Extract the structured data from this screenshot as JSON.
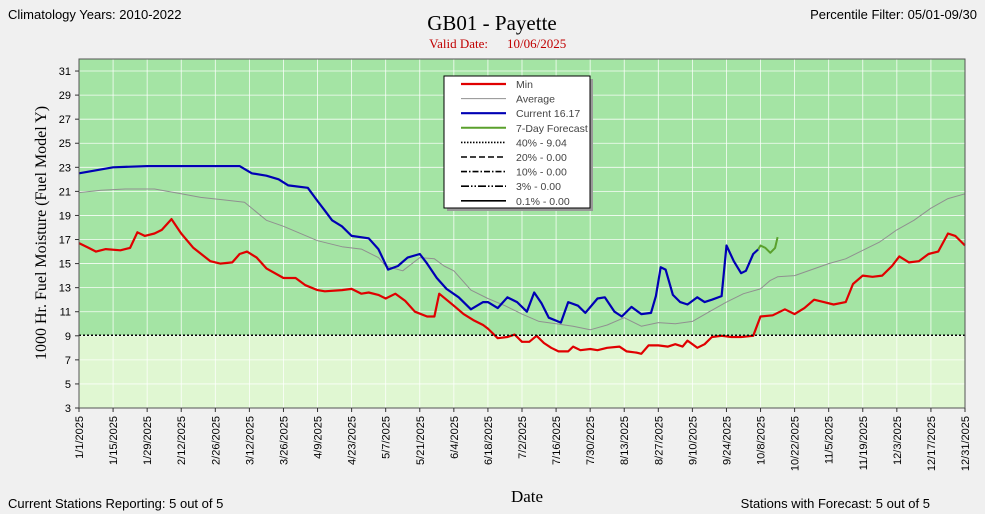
{
  "header": {
    "climatology": "Climatology Years: 2010-2022",
    "percentile_filter": "Percentile Filter:  05/01-09/30",
    "valid_date_label": "Valid Date:",
    "valid_date_value": "10/06/2025"
  },
  "footer": {
    "stations_reporting": "Current Stations Reporting: 5 out of 5",
    "stations_forecast": "Stations with Forecast: 5 out of 5"
  },
  "chart_data": {
    "type": "line",
    "title": "GB01 - Payette",
    "xlabel": "Date",
    "ylabel": "1000 Hr. Fuel Moisture  (Fuel Model Y)",
    "ylim": [
      3,
      32
    ],
    "yticks": [
      3,
      5,
      7,
      9,
      11,
      13,
      15,
      17,
      19,
      21,
      23,
      25,
      27,
      29,
      31
    ],
    "xlim": [
      "2025-01-01",
      "2025-12-31"
    ],
    "xticks": [
      "1/1/2025",
      "1/15/2025",
      "1/29/2025",
      "2/12/2025",
      "2/26/2025",
      "3/12/2025",
      "3/26/2025",
      "4/9/2025",
      "4/23/2025",
      "5/7/2025",
      "5/21/2025",
      "6/4/2025",
      "6/18/2025",
      "7/2/2025",
      "7/16/2025",
      "7/30/2025",
      "8/13/2025",
      "8/27/2025",
      "9/10/2025",
      "9/24/2025",
      "10/8/2025",
      "10/22/2025",
      "11/5/2025",
      "11/19/2025",
      "12/3/2025",
      "12/17/2025",
      "12/31/2025"
    ],
    "threshold": 9.04,
    "colors": {
      "band_upper": "#a4e4a4",
      "band_lower": "#e0f7d2",
      "min": "#e00000",
      "average": "#909090",
      "current": "#0000b4",
      "forecast": "#5aa02c"
    },
    "legend": {
      "placement": "top-center",
      "entries": [
        "Min",
        "Average",
        "Current 16.17",
        "7-Day Forecast",
        "40% -  9.04",
        "20% -  0.00",
        "10% -  0.00",
        "3% -  0.00",
        "0.1% -  0.00"
      ]
    },
    "series": [
      {
        "name": "Min",
        "points": [
          [
            "2025-01-01",
            16.7
          ],
          [
            "2025-01-05",
            16.3
          ],
          [
            "2025-01-08",
            16.0
          ],
          [
            "2025-01-12",
            16.2
          ],
          [
            "2025-01-18",
            16.1
          ],
          [
            "2025-01-22",
            16.3
          ],
          [
            "2025-01-25",
            17.6
          ],
          [
            "2025-01-28",
            17.3
          ],
          [
            "2025-02-01",
            17.5
          ],
          [
            "2025-02-04",
            17.8
          ],
          [
            "2025-02-08",
            18.7
          ],
          [
            "2025-02-12",
            17.5
          ],
          [
            "2025-02-17",
            16.3
          ],
          [
            "2025-02-24",
            15.2
          ],
          [
            "2025-02-28",
            15.0
          ],
          [
            "2025-03-05",
            15.1
          ],
          [
            "2025-03-08",
            15.8
          ],
          [
            "2025-03-11",
            16.0
          ],
          [
            "2025-03-15",
            15.5
          ],
          [
            "2025-03-19",
            14.6
          ],
          [
            "2025-03-26",
            13.8
          ],
          [
            "2025-03-31",
            13.8
          ],
          [
            "2025-04-04",
            13.2
          ],
          [
            "2025-04-09",
            12.8
          ],
          [
            "2025-04-12",
            12.7
          ],
          [
            "2025-04-19",
            12.8
          ],
          [
            "2025-04-23",
            12.9
          ],
          [
            "2025-04-27",
            12.5
          ],
          [
            "2025-04-30",
            12.6
          ],
          [
            "2025-05-04",
            12.4
          ],
          [
            "2025-05-07",
            12.1
          ],
          [
            "2025-05-11",
            12.5
          ],
          [
            "2025-05-15",
            11.9
          ],
          [
            "2025-05-19",
            11.0
          ],
          [
            "2025-05-24",
            10.6
          ],
          [
            "2025-05-27",
            10.6
          ],
          [
            "2025-05-29",
            12.5
          ],
          [
            "2025-06-01",
            12.0
          ],
          [
            "2025-06-04",
            11.5
          ],
          [
            "2025-06-08",
            10.8
          ],
          [
            "2025-06-12",
            10.3
          ],
          [
            "2025-06-16",
            9.9
          ],
          [
            "2025-06-18",
            9.6
          ],
          [
            "2025-06-22",
            8.8
          ],
          [
            "2025-06-26",
            8.9
          ],
          [
            "2025-06-29",
            9.1
          ],
          [
            "2025-07-02",
            8.5
          ],
          [
            "2025-07-05",
            8.5
          ],
          [
            "2025-07-08",
            9.0
          ],
          [
            "2025-07-11",
            8.4
          ],
          [
            "2025-07-14",
            8.0
          ],
          [
            "2025-07-17",
            7.7
          ],
          [
            "2025-07-21",
            7.7
          ],
          [
            "2025-07-23",
            8.1
          ],
          [
            "2025-07-26",
            7.8
          ],
          [
            "2025-07-30",
            7.9
          ],
          [
            "2025-08-02",
            7.8
          ],
          [
            "2025-08-06",
            8.0
          ],
          [
            "2025-08-11",
            8.1
          ],
          [
            "2025-08-14",
            7.7
          ],
          [
            "2025-08-18",
            7.6
          ],
          [
            "2025-08-20",
            7.5
          ],
          [
            "2025-08-23",
            8.2
          ],
          [
            "2025-08-27",
            8.2
          ],
          [
            "2025-08-31",
            8.1
          ],
          [
            "2025-09-03",
            8.3
          ],
          [
            "2025-09-06",
            8.1
          ],
          [
            "2025-09-08",
            8.6
          ],
          [
            "2025-09-12",
            8.0
          ],
          [
            "2025-09-15",
            8.3
          ],
          [
            "2025-09-18",
            8.9
          ],
          [
            "2025-09-22",
            9.0
          ],
          [
            "2025-09-26",
            8.9
          ],
          [
            "2025-09-30",
            8.9
          ],
          [
            "2025-10-05",
            9.0
          ],
          [
            "2025-10-08",
            10.6
          ],
          [
            "2025-10-13",
            10.7
          ],
          [
            "2025-10-18",
            11.2
          ],
          [
            "2025-10-22",
            10.8
          ],
          [
            "2025-10-26",
            11.3
          ],
          [
            "2025-10-30",
            12.0
          ],
          [
            "2025-11-03",
            11.8
          ],
          [
            "2025-11-07",
            11.6
          ],
          [
            "2025-11-12",
            11.8
          ],
          [
            "2025-11-15",
            13.3
          ],
          [
            "2025-11-19",
            14.0
          ],
          [
            "2025-11-23",
            13.9
          ],
          [
            "2025-11-27",
            14.0
          ],
          [
            "2025-12-01",
            14.8
          ],
          [
            "2025-12-04",
            15.6
          ],
          [
            "2025-12-08",
            15.1
          ],
          [
            "2025-12-12",
            15.2
          ],
          [
            "2025-12-16",
            15.8
          ],
          [
            "2025-12-20",
            16.0
          ],
          [
            "2025-12-24",
            17.5
          ],
          [
            "2025-12-27",
            17.3
          ],
          [
            "2025-12-31",
            16.5
          ]
        ]
      },
      {
        "name": "Average",
        "points": [
          [
            "2025-01-01",
            20.9
          ],
          [
            "2025-01-10",
            21.1
          ],
          [
            "2025-01-20",
            21.2
          ],
          [
            "2025-02-01",
            21.2
          ],
          [
            "2025-02-12",
            20.8
          ],
          [
            "2025-02-20",
            20.5
          ],
          [
            "2025-03-01",
            20.3
          ],
          [
            "2025-03-10",
            20.1
          ],
          [
            "2025-03-19",
            18.6
          ],
          [
            "2025-03-26",
            18.1
          ],
          [
            "2025-04-09",
            16.9
          ],
          [
            "2025-04-19",
            16.4
          ],
          [
            "2025-04-27",
            16.2
          ],
          [
            "2025-05-04",
            15.5
          ],
          [
            "2025-05-07",
            14.8
          ],
          [
            "2025-05-14",
            14.4
          ],
          [
            "2025-05-21",
            15.5
          ],
          [
            "2025-05-27",
            15.4
          ],
          [
            "2025-05-31",
            14.8
          ],
          [
            "2025-06-04",
            14.4
          ],
          [
            "2025-06-11",
            12.8
          ],
          [
            "2025-06-18",
            12.1
          ],
          [
            "2025-06-25",
            11.5
          ],
          [
            "2025-07-02",
            10.8
          ],
          [
            "2025-07-09",
            10.2
          ],
          [
            "2025-07-16",
            10.0
          ],
          [
            "2025-07-23",
            9.8
          ],
          [
            "2025-07-30",
            9.5
          ],
          [
            "2025-08-06",
            9.9
          ],
          [
            "2025-08-13",
            10.5
          ],
          [
            "2025-08-20",
            9.8
          ],
          [
            "2025-08-27",
            10.1
          ],
          [
            "2025-09-03",
            10.0
          ],
          [
            "2025-09-10",
            10.2
          ],
          [
            "2025-09-17",
            11.0
          ],
          [
            "2025-09-24",
            11.8
          ],
          [
            "2025-10-01",
            12.5
          ],
          [
            "2025-10-08",
            12.9
          ],
          [
            "2025-10-12",
            13.6
          ],
          [
            "2025-10-15",
            13.9
          ],
          [
            "2025-10-22",
            14.0
          ],
          [
            "2025-10-29",
            14.5
          ],
          [
            "2025-11-05",
            15.0
          ],
          [
            "2025-11-12",
            15.4
          ],
          [
            "2025-11-19",
            16.1
          ],
          [
            "2025-11-26",
            16.8
          ],
          [
            "2025-12-03",
            17.8
          ],
          [
            "2025-12-10",
            18.6
          ],
          [
            "2025-12-17",
            19.6
          ],
          [
            "2025-12-24",
            20.4
          ],
          [
            "2025-12-31",
            20.8
          ]
        ]
      },
      {
        "name": "Current 16.17",
        "points": [
          [
            "2025-01-01",
            22.5
          ],
          [
            "2025-01-15",
            23.0
          ],
          [
            "2025-01-29",
            23.1
          ],
          [
            "2025-02-12",
            23.1
          ],
          [
            "2025-03-08",
            23.1
          ],
          [
            "2025-03-13",
            22.5
          ],
          [
            "2025-03-19",
            22.3
          ],
          [
            "2025-03-24",
            22.0
          ],
          [
            "2025-03-28",
            21.5
          ],
          [
            "2025-04-05",
            21.3
          ],
          [
            "2025-04-09",
            20.2
          ],
          [
            "2025-04-12",
            19.4
          ],
          [
            "2025-04-15",
            18.6
          ],
          [
            "2025-04-19",
            18.1
          ],
          [
            "2025-04-23",
            17.3
          ],
          [
            "2025-04-30",
            17.1
          ],
          [
            "2025-05-04",
            16.2
          ],
          [
            "2025-05-08",
            14.5
          ],
          [
            "2025-05-12",
            14.8
          ],
          [
            "2025-05-16",
            15.5
          ],
          [
            "2025-05-21",
            15.8
          ],
          [
            "2025-05-24",
            15.0
          ],
          [
            "2025-05-28",
            13.8
          ],
          [
            "2025-06-01",
            12.9
          ],
          [
            "2025-06-06",
            12.2
          ],
          [
            "2025-06-11",
            11.2
          ],
          [
            "2025-06-16",
            11.8
          ],
          [
            "2025-06-18",
            11.8
          ],
          [
            "2025-06-22",
            11.3
          ],
          [
            "2025-06-26",
            12.2
          ],
          [
            "2025-06-30",
            11.8
          ],
          [
            "2025-07-04",
            11.0
          ],
          [
            "2025-07-07",
            12.6
          ],
          [
            "2025-07-10",
            11.7
          ],
          [
            "2025-07-13",
            10.5
          ],
          [
            "2025-07-18",
            10.1
          ],
          [
            "2025-07-21",
            11.8
          ],
          [
            "2025-07-25",
            11.5
          ],
          [
            "2025-07-28",
            10.9
          ],
          [
            "2025-08-02",
            12.1
          ],
          [
            "2025-08-05",
            12.2
          ],
          [
            "2025-08-09",
            11.0
          ],
          [
            "2025-08-12",
            10.6
          ],
          [
            "2025-08-16",
            11.4
          ],
          [
            "2025-08-20",
            10.8
          ],
          [
            "2025-08-24",
            10.9
          ],
          [
            "2025-08-26",
            12.3
          ],
          [
            "2025-08-28",
            14.7
          ],
          [
            "2025-08-30",
            14.5
          ],
          [
            "2025-09-02",
            12.4
          ],
          [
            "2025-09-05",
            11.8
          ],
          [
            "2025-09-08",
            11.6
          ],
          [
            "2025-09-12",
            12.2
          ],
          [
            "2025-09-15",
            11.8
          ],
          [
            "2025-09-18",
            12.0
          ],
          [
            "2025-09-22",
            12.3
          ],
          [
            "2025-09-24",
            16.5
          ],
          [
            "2025-09-27",
            15.2
          ],
          [
            "2025-09-30",
            14.2
          ],
          [
            "2025-10-02",
            14.4
          ],
          [
            "2025-10-05",
            15.8
          ],
          [
            "2025-10-07",
            16.17
          ]
        ]
      },
      {
        "name": "7-Day Forecast",
        "points": [
          [
            "2025-10-07",
            16.17
          ],
          [
            "2025-10-08",
            16.5
          ],
          [
            "2025-10-10",
            16.3
          ],
          [
            "2025-10-12",
            15.9
          ],
          [
            "2025-10-14",
            16.3
          ],
          [
            "2025-10-15",
            17.2
          ]
        ]
      }
    ]
  }
}
